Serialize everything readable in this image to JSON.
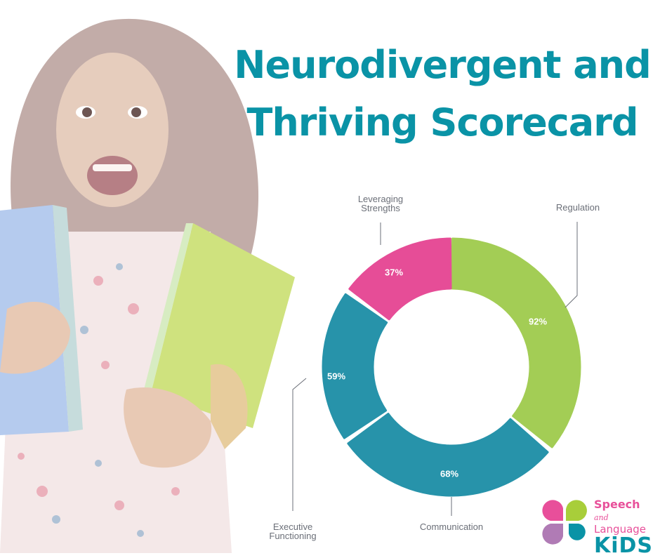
{
  "header": {
    "title_line1": "Neurodivergent and",
    "title_line2": "Thriving Scorecard"
  },
  "colors": {
    "title": "#0a93a6",
    "regulation": "#a3cd55",
    "communication": "#2793aa",
    "executive_functioning": "#2793aa",
    "leveraging_strengths": "#e64d97",
    "label_text": "#6b6f78",
    "leader_line": "#6b6f78"
  },
  "chart_data": {
    "type": "pie",
    "subtype": "donut",
    "title": "Neurodivergent and Thriving Scorecard",
    "categories": [
      "Regulation",
      "Communication",
      "Executive Functioning",
      "Leveraging Strengths"
    ],
    "values": [
      92,
      68,
      59,
      37
    ],
    "value_labels": [
      "92%",
      "68%",
      "59%",
      "37%"
    ],
    "unit": "%",
    "legend": "none (callout labels with leader lines)"
  },
  "segments": [
    {
      "name": "Regulation",
      "label_line1": "Regulation",
      "label_line2": "",
      "pct": "92%",
      "color": "#a3cd55",
      "start": 0.5,
      "end": 128.5
    },
    {
      "name": "Communication",
      "label_line1": "Communication",
      "label_line2": "",
      "pct": "68%",
      "color": "#2793aa",
      "start": 131.5,
      "end": 233.5
    },
    {
      "name": "Executive Functioning",
      "label_line1": "Executive",
      "label_line2": "Functioning",
      "pct": "59%",
      "color": "#2793aa",
      "start": 236.5,
      "end": 304.5
    },
    {
      "name": "Leveraging Strengths",
      "label_line1": "Leveraging",
      "label_line2": "Strengths",
      "pct": "37%",
      "color": "#e64d97",
      "start": 307.5,
      "end": 359.5
    }
  ],
  "logo": {
    "line1": "Speech",
    "line2_script": "and",
    "line2": "Language",
    "line3": "KiDS",
    "petal_colors": [
      "#e84f9a",
      "#a8ce3a",
      "#b07bb5",
      "#0a93a6"
    ]
  }
}
